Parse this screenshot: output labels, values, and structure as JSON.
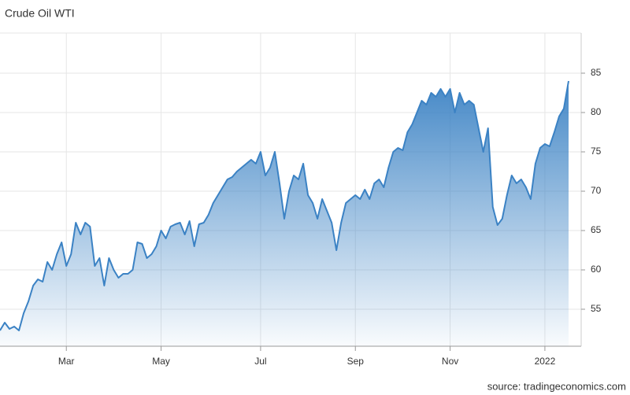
{
  "chart_data": {
    "type": "area",
    "title": "Crude Oil WTI",
    "source": "source: tradingeconomics.com",
    "categories": [
      null,
      null,
      null,
      null,
      null,
      null,
      null,
      null,
      null,
      null,
      null,
      null,
      null,
      null,
      "Mar",
      null,
      null,
      null,
      null,
      null,
      null,
      null,
      null,
      null,
      null,
      null,
      null,
      null,
      null,
      null,
      null,
      null,
      null,
      null,
      "May",
      null,
      null,
      null,
      null,
      null,
      null,
      null,
      null,
      null,
      null,
      null,
      null,
      null,
      null,
      null,
      null,
      null,
      null,
      null,
      null,
      "Jul",
      null,
      null,
      null,
      null,
      null,
      null,
      null,
      null,
      null,
      null,
      null,
      null,
      null,
      null,
      null,
      null,
      null,
      null,
      null,
      "Sep",
      null,
      null,
      null,
      null,
      null,
      null,
      null,
      null,
      null,
      null,
      null,
      null,
      null,
      null,
      null,
      null,
      null,
      null,
      null,
      "Nov",
      null,
      null,
      null,
      null,
      null,
      null,
      null,
      null,
      null,
      null,
      null,
      null,
      null,
      null,
      null,
      null,
      null,
      null,
      null,
      "2022",
      null,
      null,
      null,
      null,
      null
    ],
    "values": [
      52.3,
      53.3,
      52.5,
      52.8,
      52.3,
      54.5,
      56,
      58,
      58.8,
      58.5,
      61,
      60,
      62,
      63.5,
      60.5,
      62,
      66,
      64.5,
      66,
      65.5,
      60.5,
      61.5,
      58,
      61.5,
      60,
      59,
      59.5,
      59.5,
      60,
      63.5,
      63.3,
      61.5,
      62,
      63,
      65,
      64,
      65.5,
      65.8,
      66,
      64.5,
      66.2,
      63,
      65.8,
      66,
      67,
      68.5,
      69.5,
      70.5,
      71.5,
      71.8,
      72.5,
      73,
      73.5,
      74,
      73.5,
      75,
      72,
      73,
      75,
      71,
      66.5,
      70,
      72,
      71.5,
      73.5,
      69.5,
      68.5,
      66.5,
      69,
      67.5,
      66,
      62.5,
      66,
      68.5,
      69,
      69.5,
      69,
      70.2,
      69,
      71,
      71.5,
      70.5,
      73,
      75,
      75.5,
      75.2,
      77.5,
      78.5,
      80,
      81.5,
      81,
      82.5,
      82,
      83,
      82,
      83,
      80,
      82.5,
      81,
      81.5,
      81,
      78,
      75,
      78,
      68,
      65.7,
      66.5,
      69.5,
      72,
      71,
      71.5,
      70.5,
      69,
      73.5,
      75.5,
      76,
      75.7,
      77.5,
      79.5,
      80.5,
      84
    ],
    "color": "#3b82c4",
    "ylim": [
      50.3,
      90.1
    ],
    "yticks": [
      55,
      60,
      65,
      70,
      75,
      80,
      85
    ],
    "grid": true
  }
}
